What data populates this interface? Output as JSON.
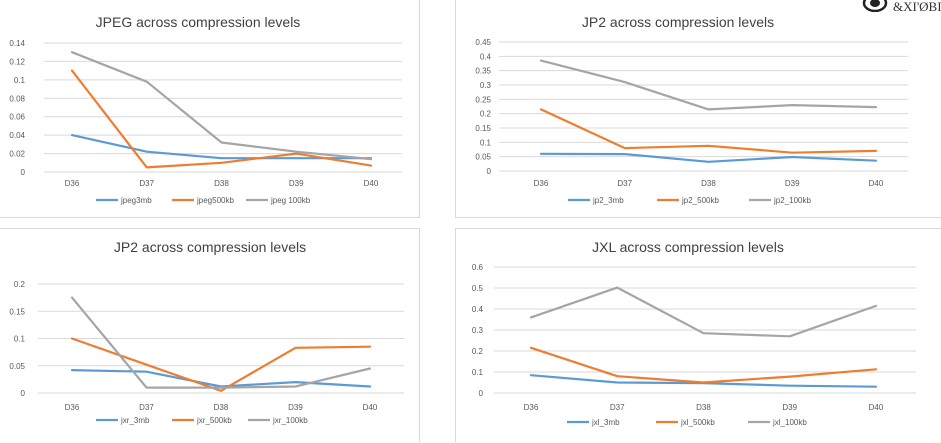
{
  "theme": {
    "series_colors": [
      "#5b9bd5",
      "#ed7d31",
      "#a5a5a5"
    ],
    "grid_color": "#d9d9d9"
  },
  "logo": {
    "text": "&XI'ØBIJI",
    "icon": "watermark-logo-icon"
  },
  "chart_data": [
    {
      "type": "line",
      "title": "JPEG across compression levels",
      "categories": [
        "D36",
        "D37",
        "D38",
        "D39",
        "D40"
      ],
      "ylim": [
        0,
        0.14
      ],
      "yticks": [
        "0",
        "0.02",
        "0.04",
        "0.06",
        "0.08",
        "0.1",
        "0.12",
        "0.14"
      ],
      "grid": true,
      "legend_position": "bottom",
      "series": [
        {
          "name": "jpeg3mb",
          "values": [
            0.04,
            0.022,
            0.015,
            0.015,
            0.015
          ]
        },
        {
          "name": "jpeg500kb",
          "values": [
            0.11,
            0.005,
            0.01,
            0.02,
            0.007
          ]
        },
        {
          "name": "jpeg 100kb",
          "values": [
            0.13,
            0.098,
            0.032,
            0.022,
            0.014
          ]
        }
      ]
    },
    {
      "type": "line",
      "title": "JP2 across compression levels",
      "categories": [
        "D36",
        "D37",
        "D38",
        "D39",
        "D40"
      ],
      "ylim": [
        0,
        0.45
      ],
      "yticks": [
        "0",
        "0.05",
        "0.1",
        "0.15",
        "0.2",
        "0.25",
        "0.3",
        "0.35",
        "0.4",
        "0.45"
      ],
      "grid": true,
      "legend_position": "bottom",
      "series": [
        {
          "name": "jp2_3mb",
          "values": [
            0.06,
            0.059,
            0.032,
            0.049,
            0.036
          ]
        },
        {
          "name": "jp2_500kb",
          "values": [
            0.215,
            0.08,
            0.088,
            0.064,
            0.07
          ]
        },
        {
          "name": "jp2_100kb",
          "values": [
            0.385,
            0.31,
            0.215,
            0.23,
            0.223
          ]
        }
      ]
    },
    {
      "type": "line",
      "title": "JP2 across compression levels",
      "categories": [
        "D36",
        "D37",
        "D38",
        "D39",
        "D40"
      ],
      "ylim": [
        0,
        0.2
      ],
      "yticks": [
        "0",
        "0.05",
        "0.1",
        "0.15",
        "0.2"
      ],
      "grid": true,
      "legend_position": "bottom",
      "series": [
        {
          "name": "jxr_3mb",
          "values": [
            0.042,
            0.039,
            0.012,
            0.02,
            0.012
          ]
        },
        {
          "name": "jxr_500kb",
          "values": [
            0.1,
            0.052,
            0.004,
            0.083,
            0.085
          ]
        },
        {
          "name": "jxr_100kb",
          "values": [
            0.175,
            0.01,
            0.01,
            0.012,
            0.045
          ]
        }
      ]
    },
    {
      "type": "line",
      "title": "JXL across compression levels",
      "categories": [
        "D36",
        "D37",
        "D38",
        "D39",
        "D40"
      ],
      "ylim": [
        0,
        0.6
      ],
      "yticks": [
        "0",
        "0.1",
        "0.2",
        "0.3",
        "0.4",
        "0.5",
        "0.6"
      ],
      "grid": true,
      "legend_position": "bottom",
      "series": [
        {
          "name": "jxl_3mb",
          "values": [
            0.085,
            0.05,
            0.047,
            0.035,
            0.03
          ]
        },
        {
          "name": "jxl_500kb",
          "values": [
            0.215,
            0.08,
            0.05,
            0.078,
            0.113
          ]
        },
        {
          "name": "jxl_100kb",
          "values": [
            0.36,
            0.502,
            0.285,
            0.27,
            0.415
          ]
        }
      ]
    }
  ]
}
